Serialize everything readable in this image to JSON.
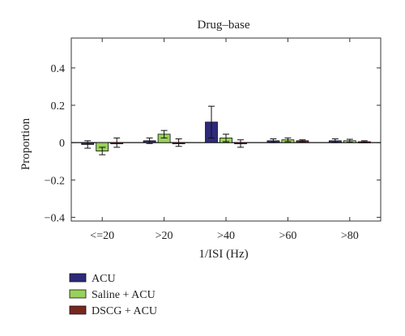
{
  "chart_data": {
    "type": "bar",
    "title": "Drug–base",
    "xlabel": "1/ISI (Hz)",
    "ylabel": "Proportion",
    "categories": [
      "<=20",
      ">20",
      ">40",
      ">60",
      ">80"
    ],
    "ylim": [
      -0.42,
      0.56
    ],
    "yticks": [
      -0.4,
      -0.2,
      0,
      0.2,
      0.4
    ],
    "ytick_labels": [
      "−0.4",
      "−0.2",
      "0",
      "0.2",
      "0.4"
    ],
    "grid": false,
    "legend_position": "bottom-left, outside plot",
    "series": [
      {
        "name": "ACU",
        "color": "#2e2a7a",
        "values": [
          -0.01,
          0.01,
          0.11,
          0.01,
          0.01
        ],
        "errors": [
          0.02,
          0.015,
          0.085,
          0.01,
          0.01
        ]
      },
      {
        "name": "Saline + ACU",
        "color": "#98d15a",
        "values": [
          -0.045,
          0.045,
          0.025,
          0.015,
          0.01
        ],
        "errors": [
          0.02,
          0.02,
          0.02,
          0.01,
          0.008
        ]
      },
      {
        "name": "DSCG + ACU",
        "color": "#7a2620",
        "values": [
          0.0,
          0.0,
          -0.005,
          0.01,
          0.005
        ],
        "errors": [
          0.025,
          0.02,
          0.02,
          0.005,
          0.005
        ]
      }
    ]
  }
}
